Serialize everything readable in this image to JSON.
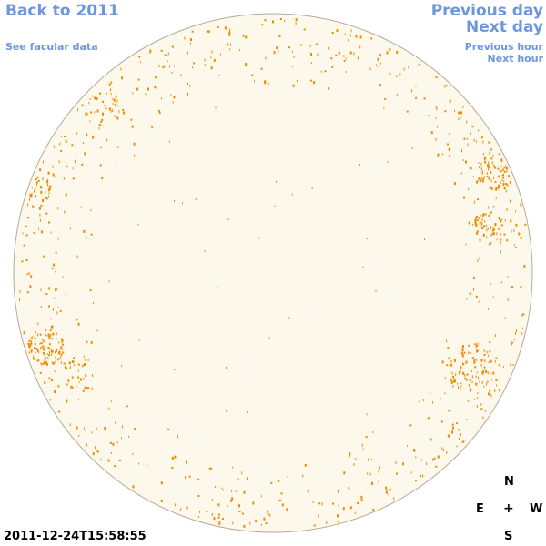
{
  "nav": {
    "back": "Back to 2011",
    "facular": "See facular data",
    "prev_day": "Previous day",
    "next_day": "Next day",
    "prev_hour": "Previous hour",
    "next_hour": "Next hour"
  },
  "timestamp": "2011-12-24T15:58:55",
  "compass": {
    "n": "N",
    "e": "E",
    "w": "W",
    "s": "S",
    "center": "+"
  },
  "colors": {
    "link": "#6e96dc",
    "disk_fill": "#fdf8ec",
    "disk_edge": "#b4aa9a",
    "facula": "#ee8c00"
  }
}
